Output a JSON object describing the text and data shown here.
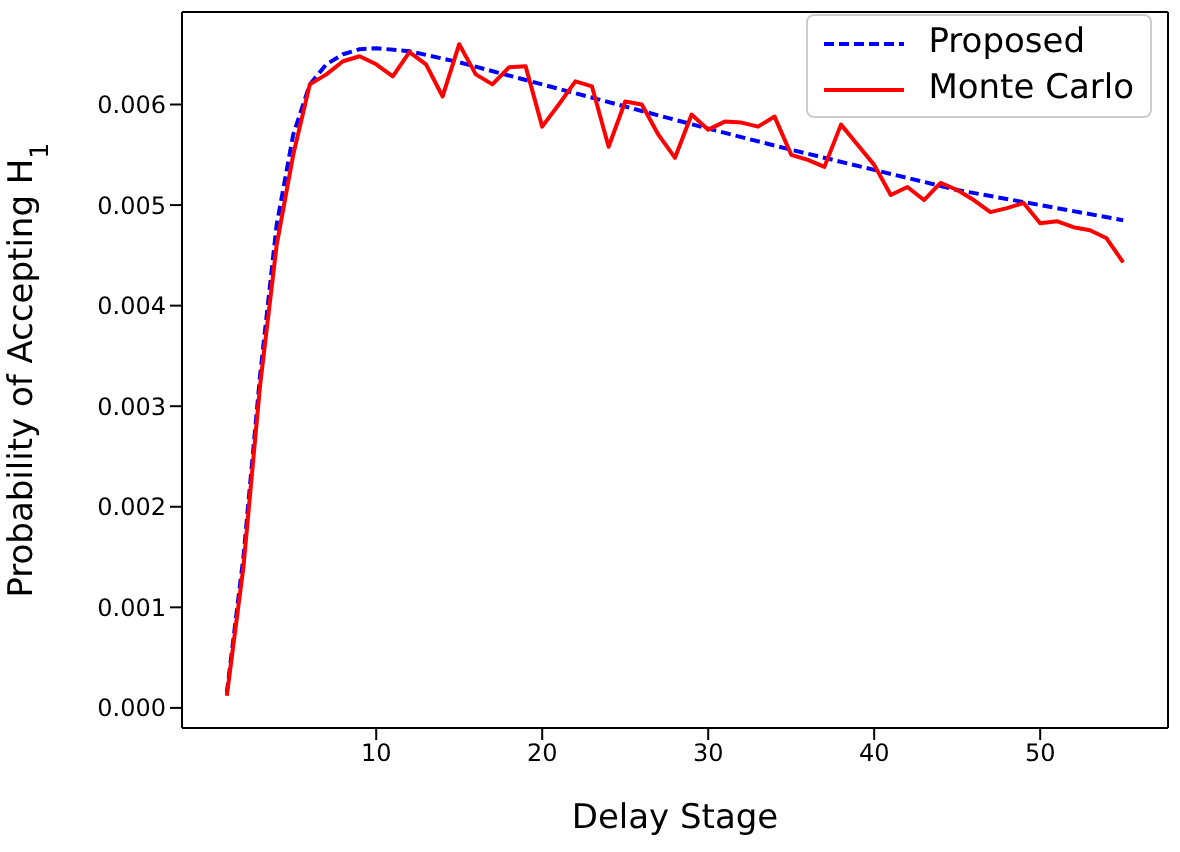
{
  "chart_data": {
    "type": "line",
    "xlabel": "Delay Stage",
    "ylabel": "Probability of Accepting H$_{1}$",
    "xlim": [
      -1.7,
      57.7
    ],
    "xticks": [
      10,
      20,
      30,
      40,
      50
    ],
    "ylim": [
      -0.0002,
      0.00692
    ],
    "yticks": [
      {
        "value": 0,
        "label": "0.000"
      },
      {
        "value": 0.001,
        "label": "0.001"
      },
      {
        "value": 0.002,
        "label": "0.002"
      },
      {
        "value": 0.003,
        "label": "0.003"
      },
      {
        "value": 0.004,
        "label": "0.004"
      },
      {
        "value": 0.005,
        "label": "0.005"
      },
      {
        "value": 0.006,
        "label": "0.006"
      }
    ],
    "grid": false,
    "legend": "top right",
    "marker": "none",
    "series": [
      {
        "name": "Proposed",
        "color": "#0000ff",
        "line_style": "dashed",
        "x": [
          1,
          2,
          3,
          4,
          5,
          6,
          7,
          8,
          9,
          10,
          12,
          15,
          20,
          25,
          30,
          35,
          40,
          45,
          50,
          55
        ],
        "values": [
          0.00015,
          0.0015,
          0.0033,
          0.0048,
          0.0057,
          0.0062,
          0.0064,
          0.0065,
          0.00655,
          0.00656,
          0.00653,
          0.00642,
          0.0062,
          0.00598,
          0.00576,
          0.00555,
          0.00535,
          0.00515,
          0.005,
          0.00485
        ]
      },
      {
        "name": "Monte Carlo",
        "color": "#ff0000",
        "line_style": "solid",
        "x": [
          1,
          2,
          3,
          4,
          5,
          6,
          7,
          8,
          9,
          10,
          11,
          12,
          13,
          14,
          15,
          16,
          17,
          18,
          19,
          20,
          21,
          22,
          23,
          24,
          25,
          26,
          27,
          28,
          29,
          30,
          31,
          32,
          33,
          34,
          35,
          36,
          37,
          38,
          39,
          40,
          41,
          42,
          43,
          44,
          45,
          46,
          47,
          48,
          49,
          50,
          51,
          52,
          53,
          54,
          55
        ],
        "values": [
          0.00012,
          0.0014,
          0.0032,
          0.0046,
          0.0055,
          0.0062,
          0.0063,
          0.00643,
          0.00648,
          0.0064,
          0.00628,
          0.00652,
          0.0064,
          0.00608,
          0.0066,
          0.0063,
          0.0062,
          0.00637,
          0.00638,
          0.00578,
          0.006,
          0.00623,
          0.00618,
          0.00558,
          0.00603,
          0.006,
          0.0057,
          0.00547,
          0.0059,
          0.00575,
          0.00583,
          0.00582,
          0.00578,
          0.00588,
          0.0055,
          0.00545,
          0.00538,
          0.0058,
          0.0056,
          0.0054,
          0.0051,
          0.00518,
          0.00505,
          0.00522,
          0.00515,
          0.00505,
          0.00493,
          0.00497,
          0.00502,
          0.00482,
          0.00484,
          0.00478,
          0.00475,
          0.00467,
          0.00443
        ]
      }
    ]
  }
}
